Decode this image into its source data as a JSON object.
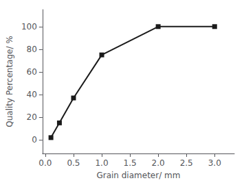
{
  "chart_data": {
    "type": "line",
    "xlabel": "Grain diameter/ mm",
    "ylabel": "Quality Percentage/ %",
    "x": [
      0.1,
      0.25,
      0.5,
      1.0,
      2.0,
      3.0
    ],
    "values": [
      2,
      15,
      37,
      75,
      100,
      100
    ],
    "color": "#1a1a1a",
    "marker": "square",
    "xlim": [
      -0.05,
      3.35
    ],
    "ylim": [
      -12,
      115
    ],
    "xticks": [
      {
        "value": 0,
        "label": "0.0"
      },
      0.5,
      {
        "value": 1,
        "label": "1.0"
      },
      1.5,
      {
        "value": 2,
        "label": "2.0"
      },
      2.5,
      {
        "value": 3,
        "label": "3.0"
      }
    ],
    "yticks": [
      0,
      20,
      40,
      60,
      80,
      100
    ],
    "grid": false
  }
}
